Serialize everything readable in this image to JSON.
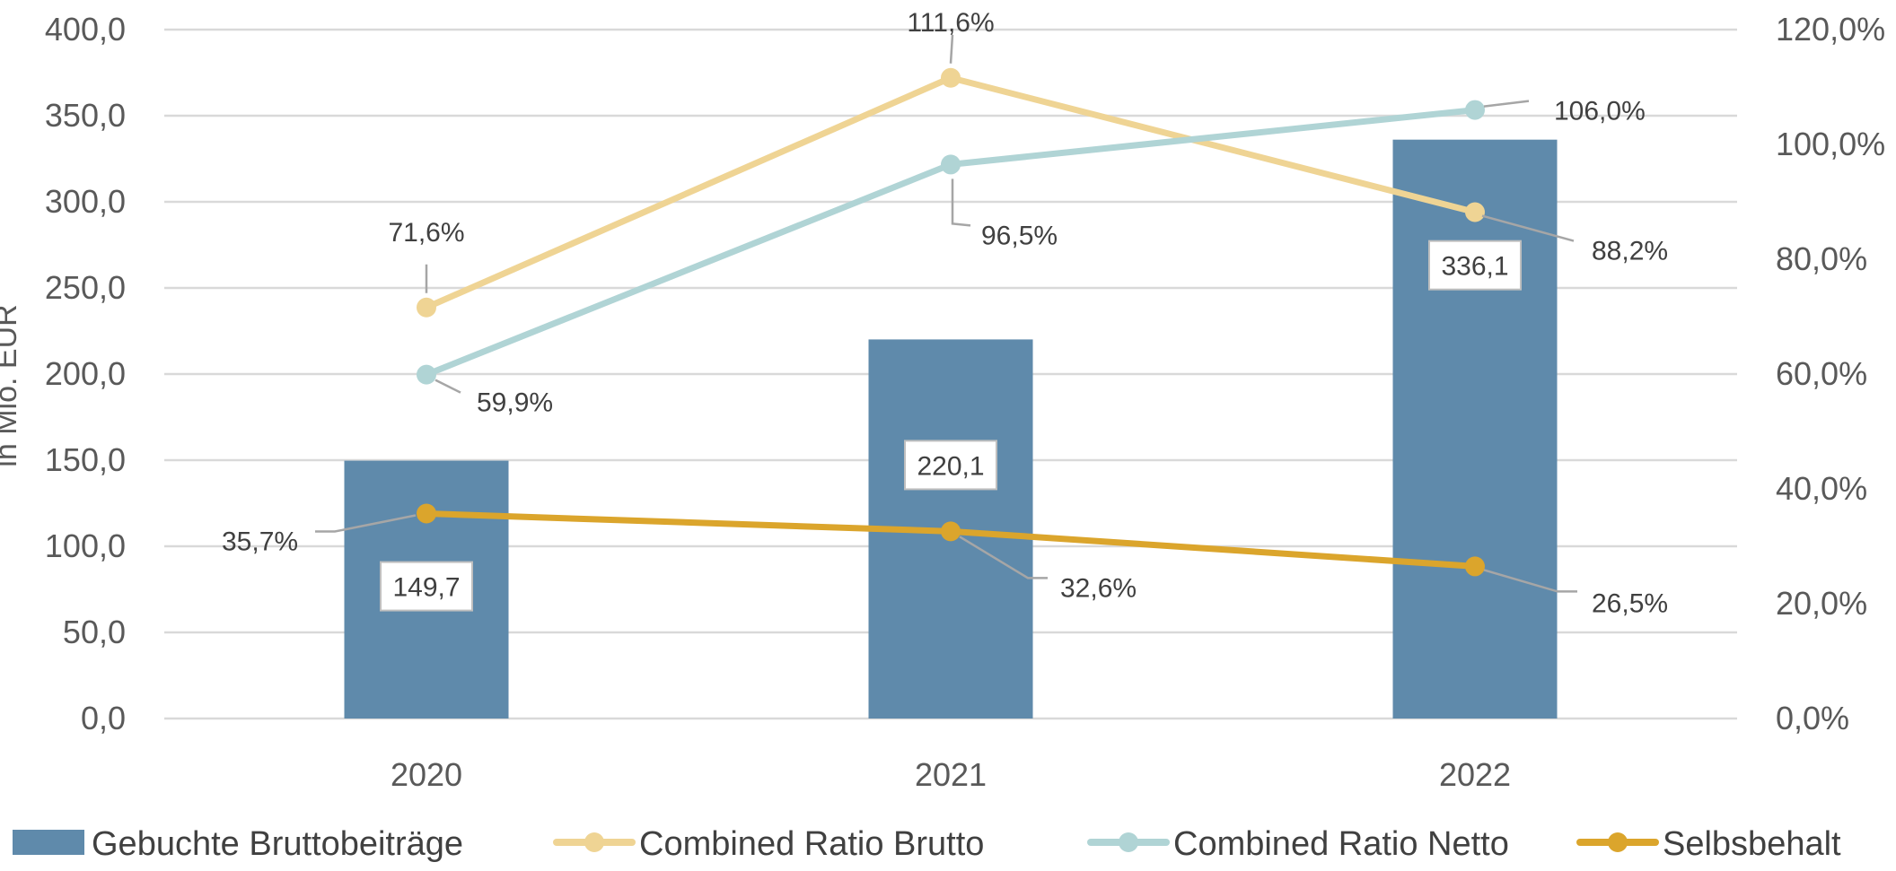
{
  "chart_data": {
    "type": "bar",
    "categories": [
      "2020",
      "2021",
      "2022"
    ],
    "ylabel": "in Mio. EUR",
    "ylim": [
      0,
      400
    ],
    "y2lim": [
      0,
      120
    ],
    "yticks": [
      "0,0",
      "50,0",
      "100,0",
      "150,0",
      "200,0",
      "250,0",
      "300,0",
      "350,0",
      "400,0"
    ],
    "y2ticks": [
      "0,0%",
      "20,0%",
      "40,0%",
      "60,0%",
      "80,0%",
      "100,0%",
      "120,0%"
    ],
    "grid": true,
    "legend_position": "bottom",
    "series": [
      {
        "name": "Gebuchte Bruttobeiträge",
        "type": "bar",
        "axis": "left",
        "values": [
          149.7,
          220.1,
          336.1
        ],
        "labels": [
          "149,7",
          "220,1",
          "336,1"
        ],
        "color": "#5f8aab"
      },
      {
        "name": "Combined Ratio Brutto",
        "type": "line",
        "axis": "right",
        "values": [
          71.6,
          111.6,
          88.2
        ],
        "labels": [
          "71,6%",
          "111,6%",
          "88,2%"
        ],
        "color": "#efd494"
      },
      {
        "name": "Combined Ratio Netto",
        "type": "line",
        "axis": "right",
        "values": [
          59.9,
          96.5,
          106.0
        ],
        "labels": [
          "59,9%",
          "96,5%",
          "106,0%"
        ],
        "color": "#b0d4d5"
      },
      {
        "name": "Selbsbehalt",
        "type": "line",
        "axis": "right",
        "values": [
          35.7,
          32.6,
          26.5
        ],
        "labels": [
          "35,7%",
          "32,6%",
          "26,5%"
        ],
        "color": "#dba52c"
      }
    ]
  }
}
